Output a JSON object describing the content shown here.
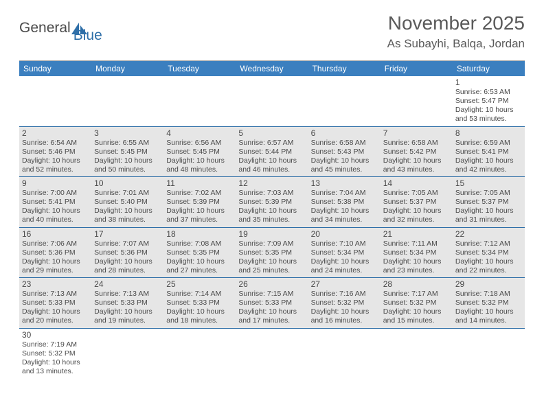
{
  "brand": {
    "part1": "General",
    "part2": "Blue"
  },
  "title": "November 2025",
  "location": "As Subayhi, Balqa, Jordan",
  "colors": {
    "header_bar": "#3b7fbf",
    "row_border": "#2f6fa8",
    "cell_gray": "#e6e6e6",
    "cell_white": "#ffffff",
    "text": "#4a4a4a",
    "logo_dark": "#4a4a4a",
    "logo_blue": "#2f6fa8"
  },
  "weekdays": [
    "Sunday",
    "Monday",
    "Tuesday",
    "Wednesday",
    "Thursday",
    "Friday",
    "Saturday"
  ],
  "weeks": [
    [
      null,
      null,
      null,
      null,
      null,
      null,
      {
        "n": "1",
        "sr": "6:53 AM",
        "ss": "5:47 PM",
        "dl": "10 hours and 53 minutes."
      }
    ],
    [
      {
        "n": "2",
        "sr": "6:54 AM",
        "ss": "5:46 PM",
        "dl": "10 hours and 52 minutes."
      },
      {
        "n": "3",
        "sr": "6:55 AM",
        "ss": "5:45 PM",
        "dl": "10 hours and 50 minutes."
      },
      {
        "n": "4",
        "sr": "6:56 AM",
        "ss": "5:45 PM",
        "dl": "10 hours and 48 minutes."
      },
      {
        "n": "5",
        "sr": "6:57 AM",
        "ss": "5:44 PM",
        "dl": "10 hours and 46 minutes."
      },
      {
        "n": "6",
        "sr": "6:58 AM",
        "ss": "5:43 PM",
        "dl": "10 hours and 45 minutes."
      },
      {
        "n": "7",
        "sr": "6:58 AM",
        "ss": "5:42 PM",
        "dl": "10 hours and 43 minutes."
      },
      {
        "n": "8",
        "sr": "6:59 AM",
        "ss": "5:41 PM",
        "dl": "10 hours and 42 minutes."
      }
    ],
    [
      {
        "n": "9",
        "sr": "7:00 AM",
        "ss": "5:41 PM",
        "dl": "10 hours and 40 minutes."
      },
      {
        "n": "10",
        "sr": "7:01 AM",
        "ss": "5:40 PM",
        "dl": "10 hours and 38 minutes."
      },
      {
        "n": "11",
        "sr": "7:02 AM",
        "ss": "5:39 PM",
        "dl": "10 hours and 37 minutes."
      },
      {
        "n": "12",
        "sr": "7:03 AM",
        "ss": "5:39 PM",
        "dl": "10 hours and 35 minutes."
      },
      {
        "n": "13",
        "sr": "7:04 AM",
        "ss": "5:38 PM",
        "dl": "10 hours and 34 minutes."
      },
      {
        "n": "14",
        "sr": "7:05 AM",
        "ss": "5:37 PM",
        "dl": "10 hours and 32 minutes."
      },
      {
        "n": "15",
        "sr": "7:05 AM",
        "ss": "5:37 PM",
        "dl": "10 hours and 31 minutes."
      }
    ],
    [
      {
        "n": "16",
        "sr": "7:06 AM",
        "ss": "5:36 PM",
        "dl": "10 hours and 29 minutes."
      },
      {
        "n": "17",
        "sr": "7:07 AM",
        "ss": "5:36 PM",
        "dl": "10 hours and 28 minutes."
      },
      {
        "n": "18",
        "sr": "7:08 AM",
        "ss": "5:35 PM",
        "dl": "10 hours and 27 minutes."
      },
      {
        "n": "19",
        "sr": "7:09 AM",
        "ss": "5:35 PM",
        "dl": "10 hours and 25 minutes."
      },
      {
        "n": "20",
        "sr": "7:10 AM",
        "ss": "5:34 PM",
        "dl": "10 hours and 24 minutes."
      },
      {
        "n": "21",
        "sr": "7:11 AM",
        "ss": "5:34 PM",
        "dl": "10 hours and 23 minutes."
      },
      {
        "n": "22",
        "sr": "7:12 AM",
        "ss": "5:34 PM",
        "dl": "10 hours and 22 minutes."
      }
    ],
    [
      {
        "n": "23",
        "sr": "7:13 AM",
        "ss": "5:33 PM",
        "dl": "10 hours and 20 minutes."
      },
      {
        "n": "24",
        "sr": "7:13 AM",
        "ss": "5:33 PM",
        "dl": "10 hours and 19 minutes."
      },
      {
        "n": "25",
        "sr": "7:14 AM",
        "ss": "5:33 PM",
        "dl": "10 hours and 18 minutes."
      },
      {
        "n": "26",
        "sr": "7:15 AM",
        "ss": "5:33 PM",
        "dl": "10 hours and 17 minutes."
      },
      {
        "n": "27",
        "sr": "7:16 AM",
        "ss": "5:32 PM",
        "dl": "10 hours and 16 minutes."
      },
      {
        "n": "28",
        "sr": "7:17 AM",
        "ss": "5:32 PM",
        "dl": "10 hours and 15 minutes."
      },
      {
        "n": "29",
        "sr": "7:18 AM",
        "ss": "5:32 PM",
        "dl": "10 hours and 14 minutes."
      }
    ],
    [
      {
        "n": "30",
        "sr": "7:19 AM",
        "ss": "5:32 PM",
        "dl": "10 hours and 13 minutes."
      },
      null,
      null,
      null,
      null,
      null,
      null
    ]
  ],
  "labels": {
    "sunrise": "Sunrise:",
    "sunset": "Sunset:",
    "daylight": "Daylight:"
  }
}
